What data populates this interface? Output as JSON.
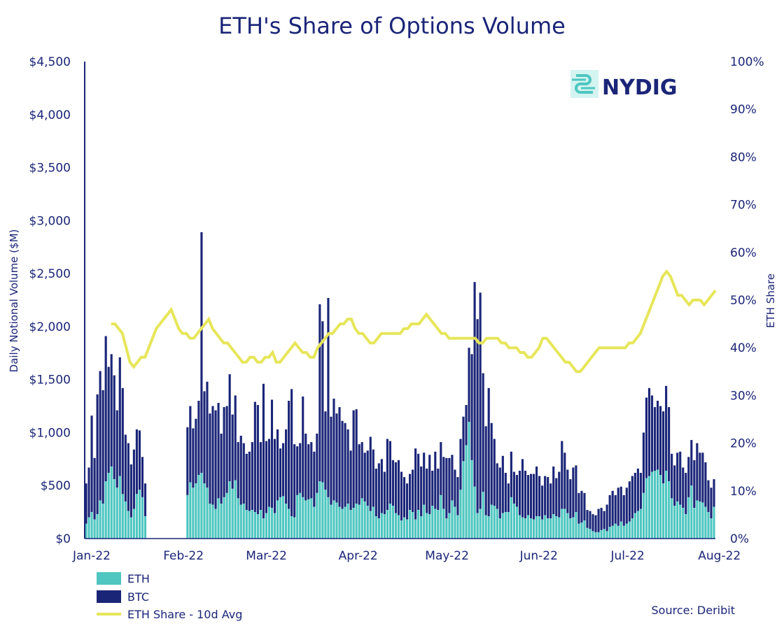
{
  "chart_data": {
    "type": "bar",
    "title": "ETH's Share of Options Volume",
    "ylabel": "Daily Notional Volume ($M)",
    "y2label": "ETH Share",
    "ylim": [
      0,
      4500
    ],
    "y2lim": [
      0,
      100
    ],
    "y_ticks": [
      "$0",
      "$500",
      "$1,000",
      "$1,500",
      "$2,000",
      "$2,500",
      "$3,000",
      "$3,500",
      "$4,000",
      "$4,500"
    ],
    "y2_ticks": [
      "0%",
      "10%",
      "20%",
      "30%",
      "40%",
      "50%",
      "60%",
      "70%",
      "80%",
      "90%",
      "100%"
    ],
    "x_ticks": [
      "Jan-22",
      "Feb-22",
      "Mar-22",
      "Apr-22",
      "May-22",
      "Jun-22",
      "Jul-22",
      "Aug-22"
    ],
    "x_range_days": [
      0,
      213
    ],
    "stacked": true,
    "legend": [
      "ETH",
      "BTC",
      "ETH Share - 10d Avg"
    ],
    "legend_position": "bottom-left",
    "source": "Source: Deribit",
    "logo_text": "NYDIG",
    "colors": {
      "eth": "#4fc6c0",
      "btc": "#1b2578",
      "share": "#e6e65a",
      "text": "#1b2578"
    },
    "series": [
      {
        "name": "ETH",
        "values": [
          140,
          200,
          250,
          180,
          230,
          360,
          330,
          540,
          620,
          680,
          560,
          480,
          590,
          420,
          350,
          260,
          200,
          280,
          420,
          460,
          390,
          210,
          0,
          0,
          0,
          0,
          0,
          0,
          0,
          0,
          0,
          0,
          0,
          0,
          0,
          0,
          410,
          530,
          480,
          520,
          600,
          620,
          520,
          480,
          330,
          320,
          280,
          380,
          330,
          390,
          430,
          540,
          470,
          550,
          380,
          320,
          330,
          270,
          260,
          270,
          250,
          230,
          270,
          190,
          240,
          300,
          290,
          240,
          360,
          390,
          400,
          330,
          280,
          210,
          200,
          410,
          430,
          390,
          360,
          370,
          380,
          300,
          430,
          540,
          530,
          460,
          390,
          320,
          360,
          340,
          300,
          280,
          300,
          330,
          270,
          290,
          330,
          320,
          380,
          350,
          310,
          260,
          300,
          210,
          190,
          240,
          230,
          270,
          330,
          310,
          240,
          220,
          170,
          200,
          180,
          270,
          250,
          180,
          270,
          210,
          320,
          240,
          230,
          310,
          280,
          270,
          410,
          280,
          190,
          240,
          360,
          300,
          220,
          460,
          730,
          880,
          1100,
          740,
          490,
          240,
          280,
          440,
          220,
          210,
          320,
          310,
          280,
          190,
          240,
          250,
          250,
          390,
          330,
          300,
          220,
          200,
          190,
          220,
          190,
          180,
          210,
          210,
          180,
          220,
          190,
          190,
          230,
          210,
          200,
          280,
          280,
          240,
          190,
          200,
          250,
          140,
          150,
          170,
          100,
          90,
          70,
          60,
          60,
          80,
          90,
          70,
          110,
          120,
          140,
          120,
          160,
          120,
          140,
          160,
          190,
          240,
          260,
          280,
          430,
          570,
          590,
          630,
          640,
          650,
          600,
          520,
          640,
          540,
          380,
          310,
          350,
          320,
          290,
          230,
          390,
          500,
          290,
          360,
          350,
          340,
          300,
          250,
          190,
          300
        ],
        "note": "values in $M"
      },
      {
        "name": "BTC",
        "values": [
          380,
          470,
          910,
          580,
          1130,
          1220,
          1070,
          1370,
          1000,
          1060,
          980,
          730,
          1120,
          1000,
          630,
          640,
          500,
          560,
          610,
          560,
          380,
          310,
          0,
          0,
          0,
          0,
          0,
          0,
          0,
          0,
          0,
          0,
          0,
          0,
          0,
          0,
          640,
          720,
          560,
          610,
          700,
          2270,
          870,
          1000,
          850,
          930,
          930,
          900,
          660,
          850,
          820,
          1010,
          700,
          800,
          530,
          650,
          570,
          530,
          560,
          640,
          1040,
          1030,
          640,
          1270,
          680,
          640,
          1020,
          700,
          670,
          460,
          500,
          700,
          1020,
          1200,
          690,
          460,
          470,
          950,
          630,
          520,
          530,
          520,
          560,
          1670,
          1520,
          740,
          1880,
          830,
          960,
          840,
          940,
          830,
          790,
          700,
          560,
          920,
          890,
          570,
          530,
          460,
          520,
          700,
          540,
          450,
          520,
          510,
          400,
          670,
          590,
          430,
          480,
          520,
          460,
          380,
          340,
          340,
          400,
          670,
          530,
          470,
          490,
          420,
          560,
          330,
          540,
          390,
          500,
          490,
          570,
          520,
          430,
          350,
          360,
          480,
          420,
          380,
          700,
          1000,
          1930,
          1830,
          2040,
          1120,
          840,
          1210,
          770,
          630,
          430,
          480,
          540,
          370,
          270,
          430,
          300,
          300,
          420,
          550,
          450,
          380,
          420,
          430,
          470,
          380,
          320,
          370,
          390,
          330,
          450,
          360,
          430,
          640,
          530,
          410,
          370,
          470,
          440,
          290,
          300,
          260,
          170,
          170,
          160,
          160,
          220,
          210,
          170,
          250,
          300,
          330,
          270,
          360,
          330,
          290,
          340,
          380,
          400,
          380,
          400,
          340,
          570,
          760,
          830,
          720,
          600,
          650,
          650,
          680,
          800,
          700,
          420,
          380,
          460,
          500,
          380,
          390,
          380,
          430,
          450,
          540,
          460,
          470,
          420,
          300,
          290,
          260,
          280
        ],
        "note": "values in $M"
      },
      {
        "name": "ETH Share - 10d Avg",
        "values": [
          45,
          45,
          44,
          43,
          40,
          37,
          36,
          37,
          38,
          38,
          40,
          42,
          44,
          45,
          46,
          47,
          48,
          46,
          44,
          43,
          43,
          42,
          42,
          43,
          44,
          45,
          46,
          44,
          43,
          42,
          41,
          41,
          40,
          39,
          38,
          37,
          37,
          38,
          38,
          37,
          37,
          38,
          38,
          39,
          37,
          37,
          38,
          39,
          40,
          41,
          40,
          39,
          39,
          38,
          38,
          40,
          41,
          42,
          43,
          43,
          44,
          45,
          45,
          46,
          46,
          44,
          43,
          43,
          42,
          41,
          41,
          42,
          43,
          43,
          43,
          43,
          43,
          43,
          44,
          44,
          45,
          45,
          45,
          46,
          47,
          46,
          45,
          44,
          43,
          43,
          42,
          42,
          42,
          42,
          42,
          42,
          42,
          42,
          41,
          41,
          42,
          42,
          42,
          42,
          41,
          41,
          40,
          40,
          40,
          39,
          39,
          38,
          38,
          39,
          40,
          42,
          42,
          41,
          40,
          39,
          38,
          37,
          37,
          36,
          35,
          35,
          36,
          37,
          38,
          39,
          40,
          40,
          40,
          40,
          40,
          40,
          40,
          40,
          41,
          41,
          42,
          43,
          45,
          47,
          49,
          51,
          53,
          55,
          56,
          55,
          53,
          51,
          51,
          50,
          49,
          50,
          50,
          50,
          49,
          50,
          51,
          52
        ],
        "note": "percent, starts ~day 7"
      }
    ]
  },
  "legend": {
    "eth": "ETH",
    "btc": "BTC",
    "share": "ETH Share - 10d Avg"
  },
  "source": "Source: Deribit",
  "logo": "NYDIG"
}
